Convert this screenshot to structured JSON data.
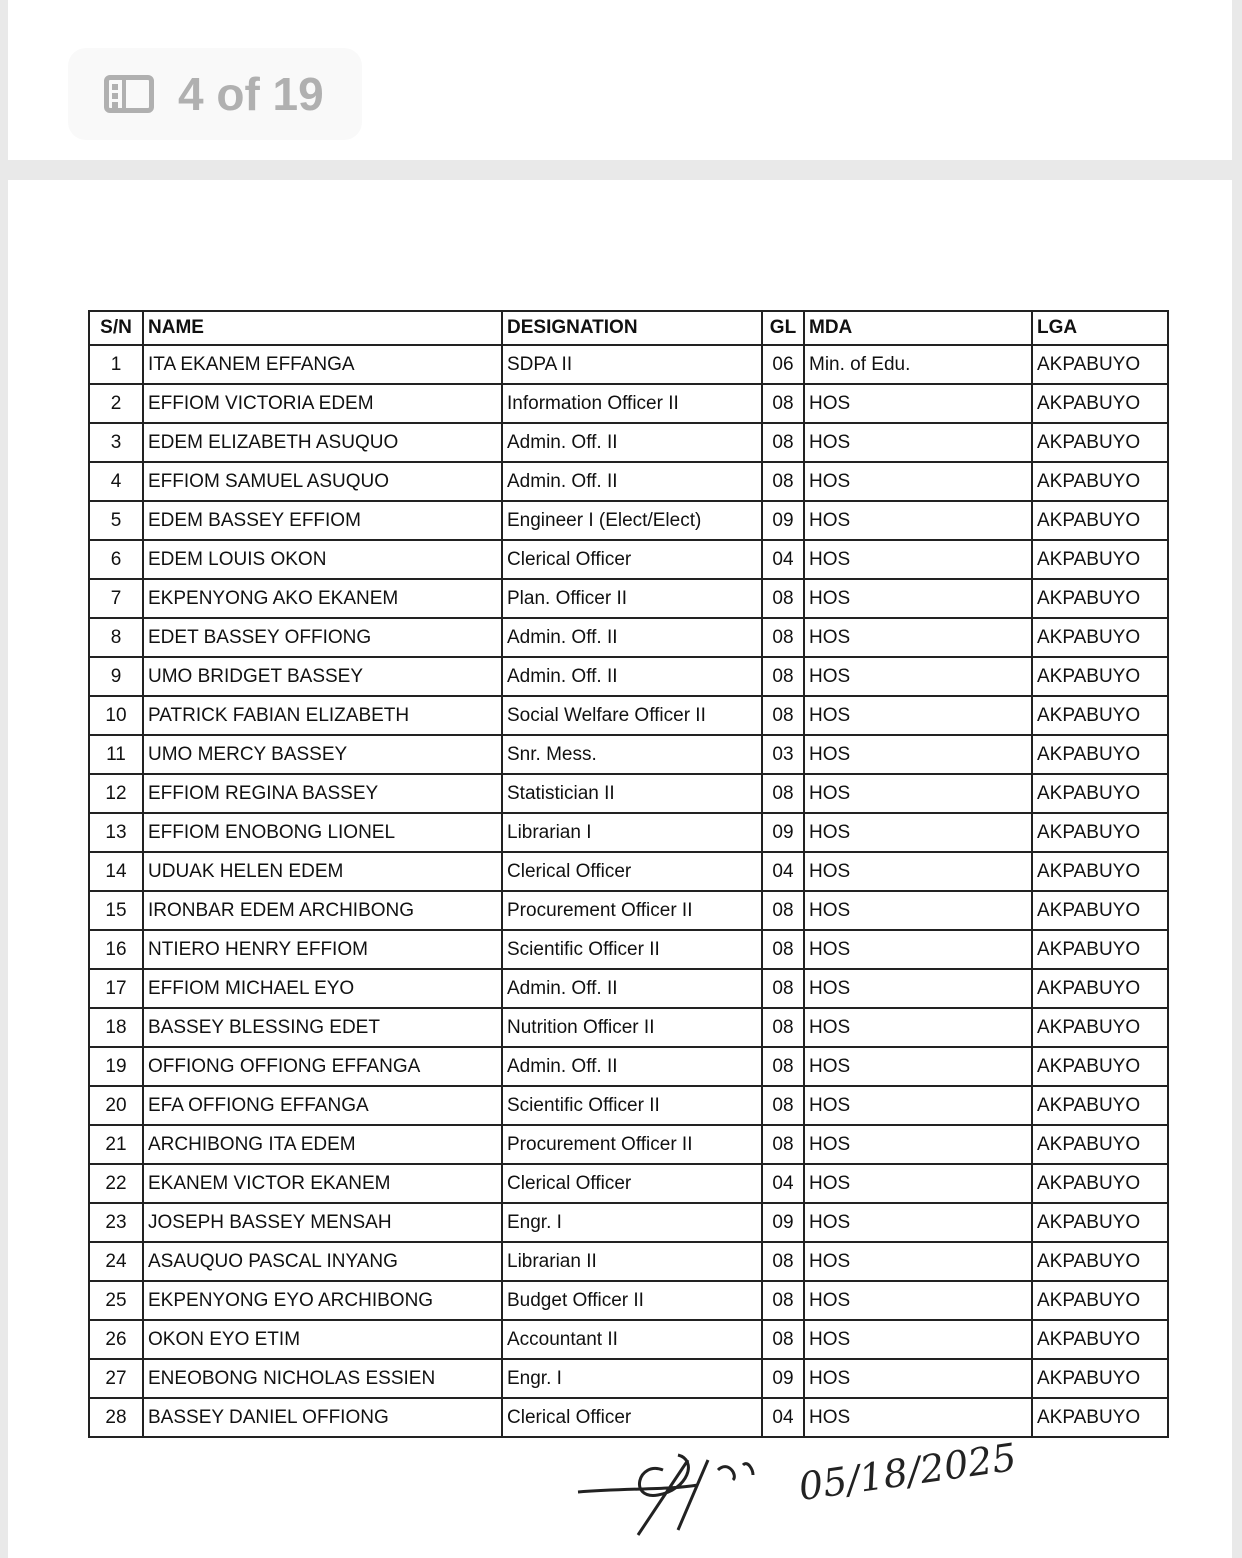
{
  "viewer": {
    "page_indicator": "4 of 19",
    "icon": "sidebar-icon"
  },
  "table": {
    "headers": [
      "S/N",
      "NAME",
      "DESIGNATION",
      "GL",
      "MDA",
      "LGA"
    ],
    "rows": [
      [
        "1",
        "ITA EKANEM EFFANGA",
        "SDPA II",
        "06",
        "Min. of Edu.",
        "AKPABUYO"
      ],
      [
        "2",
        "EFFIOM VICTORIA EDEM",
        "Information Officer II",
        "08",
        "HOS",
        "AKPABUYO"
      ],
      [
        "3",
        "EDEM ELIZABETH ASUQUO",
        "Admin. Off. II",
        "08",
        "HOS",
        "AKPABUYO"
      ],
      [
        "4",
        "EFFIOM SAMUEL ASUQUO",
        "Admin. Off. II",
        "08",
        "HOS",
        "AKPABUYO"
      ],
      [
        "5",
        "EDEM BASSEY EFFIOM",
        "Engineer I (Elect/Elect)",
        "09",
        "HOS",
        "AKPABUYO"
      ],
      [
        "6",
        "EDEM LOUIS OKON",
        "Clerical Officer",
        "04",
        "HOS",
        "AKPABUYO"
      ],
      [
        "7",
        "EKPENYONG AKO EKANEM",
        "Plan. Officer II",
        "08",
        "HOS",
        "AKPABUYO"
      ],
      [
        "8",
        "EDET BASSEY OFFIONG",
        "Admin. Off. II",
        "08",
        "HOS",
        "AKPABUYO"
      ],
      [
        "9",
        "UMO BRIDGET BASSEY",
        "Admin. Off. II",
        "08",
        "HOS",
        "AKPABUYO"
      ],
      [
        "10",
        "PATRICK FABIAN ELIZABETH",
        "Social Welfare Officer II",
        "08",
        "HOS",
        "AKPABUYO"
      ],
      [
        "11",
        "UMO MERCY BASSEY",
        "Snr. Mess.",
        "03",
        "HOS",
        "AKPABUYO"
      ],
      [
        "12",
        "EFFIOM REGINA BASSEY",
        "Statistician II",
        "08",
        "HOS",
        "AKPABUYO"
      ],
      [
        "13",
        "EFFIOM ENOBONG LIONEL",
        "Librarian I",
        "09",
        "HOS",
        "AKPABUYO"
      ],
      [
        "14",
        "UDUAK HELEN EDEM",
        "Clerical Officer",
        "04",
        "HOS",
        "AKPABUYO"
      ],
      [
        "15",
        "IRONBAR EDEM ARCHIBONG",
        "Procurement Officer II",
        "08",
        "HOS",
        "AKPABUYO"
      ],
      [
        "16",
        "NTIERO HENRY EFFIOM",
        "Scientific Officer II",
        "08",
        "HOS",
        "AKPABUYO"
      ],
      [
        "17",
        "EFFIOM  MICHAEL EYO",
        "Admin. Off. II",
        "08",
        "HOS",
        "AKPABUYO"
      ],
      [
        "18",
        "BASSEY BLESSING EDET",
        "Nutrition Officer II",
        "08",
        "HOS",
        "AKPABUYO"
      ],
      [
        "19",
        "OFFIONG OFFIONG EFFANGA",
        "Admin. Off. II",
        "08",
        "HOS",
        "AKPABUYO"
      ],
      [
        "20",
        "EFA OFFIONG EFFANGA",
        "Scientific Officer II",
        "08",
        "HOS",
        "AKPABUYO"
      ],
      [
        "21",
        "ARCHIBONG  ITA EDEM",
        "Procurement Officer II",
        "08",
        "HOS",
        "AKPABUYO"
      ],
      [
        "22",
        "EKANEM VICTOR EKANEM",
        "Clerical Officer",
        "04",
        "HOS",
        "AKPABUYO"
      ],
      [
        "23",
        "JOSEPH BASSEY MENSAH",
        "Engr. I",
        "09",
        "HOS",
        "AKPABUYO"
      ],
      [
        "24",
        "ASAUQUO PASCAL INYANG",
        "Librarian II",
        "08",
        "HOS",
        "AKPABUYO"
      ],
      [
        "25",
        "EKPENYONG EYO ARCHIBONG",
        "Budget Officer II",
        "08",
        "HOS",
        "AKPABUYO"
      ],
      [
        "26",
        "OKON EYO ETIM",
        "Accountant II",
        "08",
        "HOS",
        "AKPABUYO"
      ],
      [
        "27",
        "ENEOBONG NICHOLAS ESSIEN",
        "Engr. I",
        "09",
        "HOS",
        "AKPABUYO"
      ],
      [
        "28",
        "BASSEY DANIEL OFFIONG",
        "Clerical Officer",
        "04",
        "HOS",
        "AKPABUYO"
      ]
    ]
  },
  "signature": {
    "date": "05/18/2025"
  }
}
